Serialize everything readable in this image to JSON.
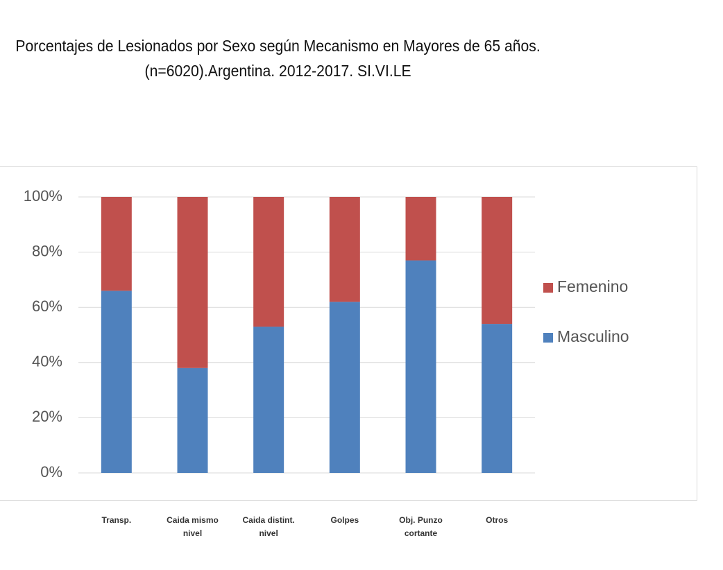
{
  "chart_data": {
    "type": "stacked_bar",
    "title": "Porcentajes de Lesionados por Sexo según Mecanismo en Mayores de 65 años. (n=6020).Argentina. 2012-2017. SI.VI.LE",
    "categories": [
      "Transp.",
      "Caida mismo nivel",
      "Caida distint. nivel",
      "Golpes",
      "Obj. Punzo cortante",
      "Otros"
    ],
    "series": [
      {
        "name": "Masculino",
        "color": "#4f81bd",
        "values": [
          66,
          38,
          53,
          62,
          77,
          54
        ]
      },
      {
        "name": "Femenino",
        "color": "#c0504d",
        "values": [
          34,
          62,
          47,
          38,
          23,
          46
        ]
      }
    ],
    "ylim": [
      0,
      100
    ],
    "yticks": [
      {
        "value": 0,
        "label": "0%"
      },
      {
        "value": 20,
        "label": "20%"
      },
      {
        "value": 40,
        "label": "40%"
      },
      {
        "value": 60,
        "label": "60%"
      },
      {
        "value": 80,
        "label": "80%"
      },
      {
        "value": 100,
        "label": "100%"
      }
    ],
    "grid": true,
    "legend": "right"
  }
}
